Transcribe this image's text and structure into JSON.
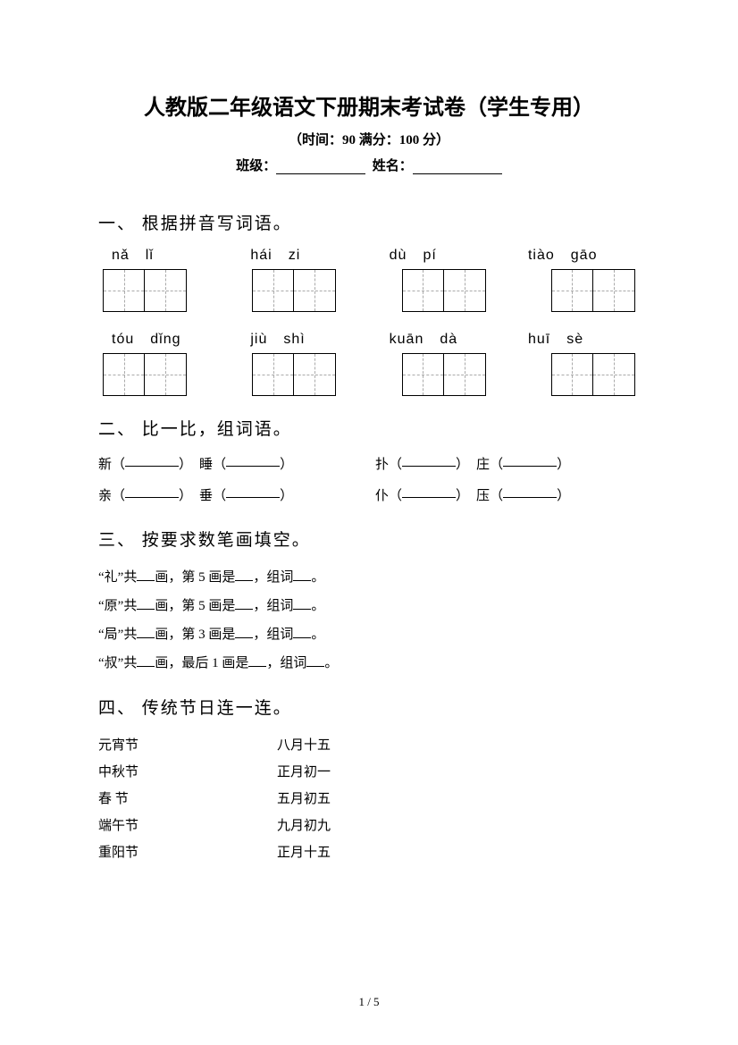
{
  "title": "人教版二年级语文下册期末考试卷（学生专用）",
  "subtitle": "（时间：90   满分：100 分）",
  "info": {
    "class_label": "班级：",
    "name_label": "姓名："
  },
  "section1": {
    "heading": "一、 根据拼音写词语。",
    "rows": [
      [
        {
          "s1": "nǎ",
          "s2": "lǐ"
        },
        {
          "s1": "hái",
          "s2": "zi"
        },
        {
          "s1": "dù",
          "s2": "pí"
        },
        {
          "s1": "tiào",
          "s2": "gāo"
        }
      ],
      [
        {
          "s1": "tóu",
          "s2": "dǐng"
        },
        {
          "s1": "jiù",
          "s2": "shì"
        },
        {
          "s1": "kuān",
          "s2": "dà"
        },
        {
          "s1": "huī",
          "s2": "sè"
        }
      ]
    ]
  },
  "section2": {
    "heading": "二、 比一比，组词语。",
    "rows": [
      {
        "l1": "新",
        "l2": "睡",
        "r1": "扑",
        "r2": "庄"
      },
      {
        "l1": "亲",
        "l2": "垂",
        "r1": "仆",
        "r2": "压"
      }
    ]
  },
  "section3": {
    "heading": "三、 按要求数笔画填空。",
    "lines": [
      {
        "char": "礼",
        "which": "第 5 画是"
      },
      {
        "char": "原",
        "which": "第 5 画是"
      },
      {
        "char": "局",
        "which": "第 3 画是"
      },
      {
        "char": "叔",
        "which": "最后 1 画是"
      }
    ],
    "prefix": "\"",
    "mid1": "\"共",
    "mid2": "画，",
    "mid3": "，组词",
    "suffix": "。"
  },
  "section4": {
    "heading": "四、 传统节日连一连。",
    "pairs": [
      {
        "left": "元宵节",
        "right": "八月十五"
      },
      {
        "left": "中秋节",
        "right": "正月初一"
      },
      {
        "left": "春  节",
        "right": "五月初五"
      },
      {
        "left": "端午节",
        "right": "九月初九"
      },
      {
        "left": "重阳节",
        "right": "正月十五"
      }
    ]
  },
  "page_num": "1 / 5"
}
